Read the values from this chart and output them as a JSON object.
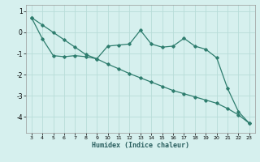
{
  "x_jagged": [
    3,
    4,
    5,
    6,
    7,
    8,
    9,
    10,
    11,
    12,
    13,
    14,
    15,
    16,
    17,
    18,
    19,
    20,
    21,
    22,
    23
  ],
  "y_jagged": [
    0.7,
    -0.3,
    -1.1,
    -1.15,
    -1.1,
    -1.15,
    -1.25,
    -0.65,
    -0.6,
    -0.55,
    0.1,
    -0.55,
    -0.7,
    -0.65,
    -0.28,
    -0.65,
    -0.8,
    -1.2,
    -2.65,
    -3.75,
    -4.3
  ],
  "x_linear": [
    3,
    4,
    5,
    6,
    7,
    8,
    9,
    10,
    11,
    12,
    13,
    14,
    15,
    16,
    17,
    18,
    19,
    20,
    21,
    22,
    23
  ],
  "y_linear": [
    0.7,
    0.35,
    -0.0,
    -0.35,
    -0.7,
    -1.05,
    -1.25,
    -1.5,
    -1.72,
    -1.95,
    -2.15,
    -2.35,
    -2.55,
    -2.75,
    -2.9,
    -3.05,
    -3.2,
    -3.35,
    -3.6,
    -3.9,
    -4.3
  ],
  "line_color": "#2e7d6e",
  "bg_color": "#d6f0ee",
  "grid_color": "#b8dcd8",
  "xlabel": "Humidex (Indice chaleur)",
  "xlim": [
    2.5,
    23.5
  ],
  "ylim": [
    -4.75,
    1.3
  ],
  "yticks": [
    1,
    0,
    -1,
    -2,
    -3,
    -4
  ],
  "xticks": [
    3,
    4,
    5,
    6,
    7,
    8,
    9,
    10,
    11,
    12,
    13,
    14,
    15,
    16,
    17,
    18,
    19,
    20,
    21,
    22,
    23
  ]
}
